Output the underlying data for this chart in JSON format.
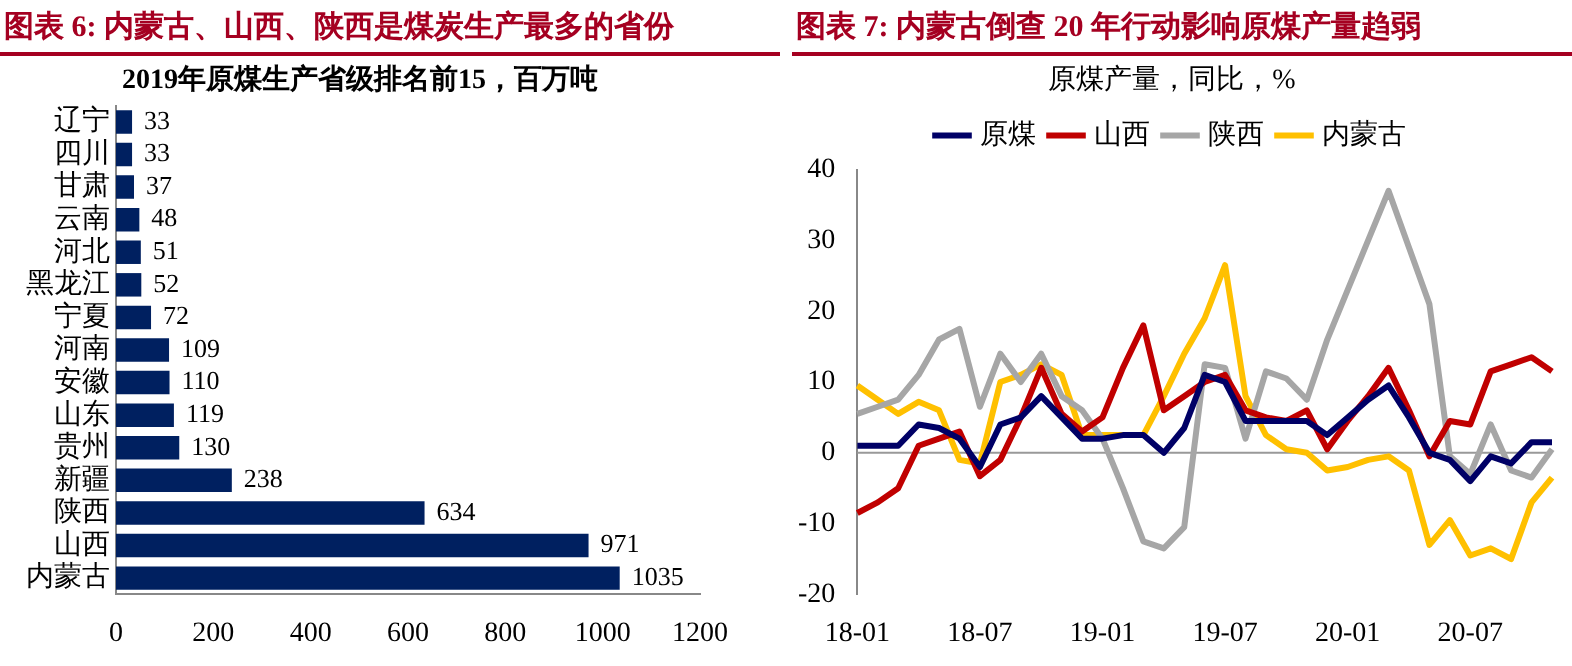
{
  "chart_data": [
    {
      "type": "bar",
      "orientation": "horizontal",
      "title": "图表 6: 内蒙古、山西、陕西是煤炭生产最多的省份",
      "subtitle": "2019年原煤生产省级排名前15，百万吨",
      "categories": [
        "辽宁",
        "四川",
        "甘肃",
        "云南",
        "河北",
        "黑龙江",
        "宁夏",
        "河南",
        "安徽",
        "山东",
        "贵州",
        "新疆",
        "陕西",
        "山西",
        "内蒙古"
      ],
      "values": [
        33,
        33,
        37,
        48,
        51,
        52,
        72,
        109,
        110,
        119,
        130,
        238,
        634,
        971,
        1035
      ],
      "color": "#002060",
      "xlim": [
        0,
        1200
      ],
      "xticks": [
        0,
        200,
        400,
        600,
        800,
        1000,
        1200
      ],
      "data_labels": true,
      "grid": false,
      "legend": false
    },
    {
      "type": "line",
      "title": "图表 7: 内蒙古倒查 20 年行动影响原煤产量趋弱",
      "subtitle": "原煤产量，同比，%",
      "categories": [
        "18-01",
        null,
        null,
        null,
        null,
        null,
        "18-07",
        null,
        null,
        null,
        null,
        null,
        "19-01",
        null,
        null,
        null,
        null,
        null,
        "19-07",
        null,
        null,
        null,
        null,
        null,
        "20-01",
        null,
        null,
        null,
        null,
        null,
        "20-07",
        null,
        null,
        null,
        null
      ],
      "series": [
        {
          "name": "原煤",
          "color": "#000066",
          "values": [
            1,
            1,
            1,
            4,
            3.5,
            2,
            -2,
            4,
            5,
            8,
            5,
            2,
            2,
            2.5,
            2.5,
            0,
            3.5,
            11,
            10,
            4.5,
            4.5,
            4.5,
            4.5,
            2.5,
            5,
            7.5,
            9.5,
            5,
            0,
            -1,
            -4,
            -0.5,
            -1.5,
            1.5,
            1.5
          ]
        },
        {
          "name": "山西",
          "color": "#c00000",
          "values": [
            -8.5,
            -7,
            -5,
            1,
            2,
            3,
            -3.3,
            -1,
            5,
            12,
            5.5,
            3,
            5,
            12,
            18,
            6,
            8,
            10,
            11,
            6,
            5,
            4.5,
            6,
            0.5,
            4.5,
            8,
            12,
            6,
            -0.5,
            4.5,
            4,
            11.5,
            12.5,
            13.5,
            11.5
          ]
        },
        {
          "name": "陕西",
          "color": "#a6a6a6",
          "values": [
            5.5,
            6.5,
            7.5,
            11,
            16,
            17.5,
            6.5,
            14,
            10,
            14,
            8,
            6,
            2,
            -5,
            -12.5,
            -13.5,
            -10.5,
            12.5,
            12,
            2,
            11.5,
            10.5,
            7.5,
            16,
            23,
            30,
            37,
            29,
            21,
            -0.5,
            -3,
            4,
            -2.5,
            -3.5,
            0.5
          ]
        },
        {
          "name": "内蒙古",
          "color": "#ffc000",
          "values": [
            9.5,
            7.5,
            5.5,
            7.2,
            6,
            -1,
            -1.5,
            10,
            11,
            12.5,
            11,
            2.5,
            2.5,
            2.5,
            2.5,
            8,
            14,
            19,
            26.5,
            8,
            2.5,
            0.5,
            0,
            -2.5,
            -2,
            -1,
            -0.5,
            -2.5,
            -13,
            -9.5,
            -14.5,
            -13.5,
            -15,
            -7,
            -3.5
          ]
        }
      ],
      "ylim": [
        -20,
        40
      ],
      "yticks": [
        -20,
        -10,
        0,
        10,
        20,
        30,
        40
      ],
      "ref_lines": [
        {
          "axis": "y",
          "value": 0,
          "color": "#999999"
        }
      ],
      "legend": "top",
      "grid": false,
      "marker": "none",
      "line_style": "solid"
    }
  ]
}
